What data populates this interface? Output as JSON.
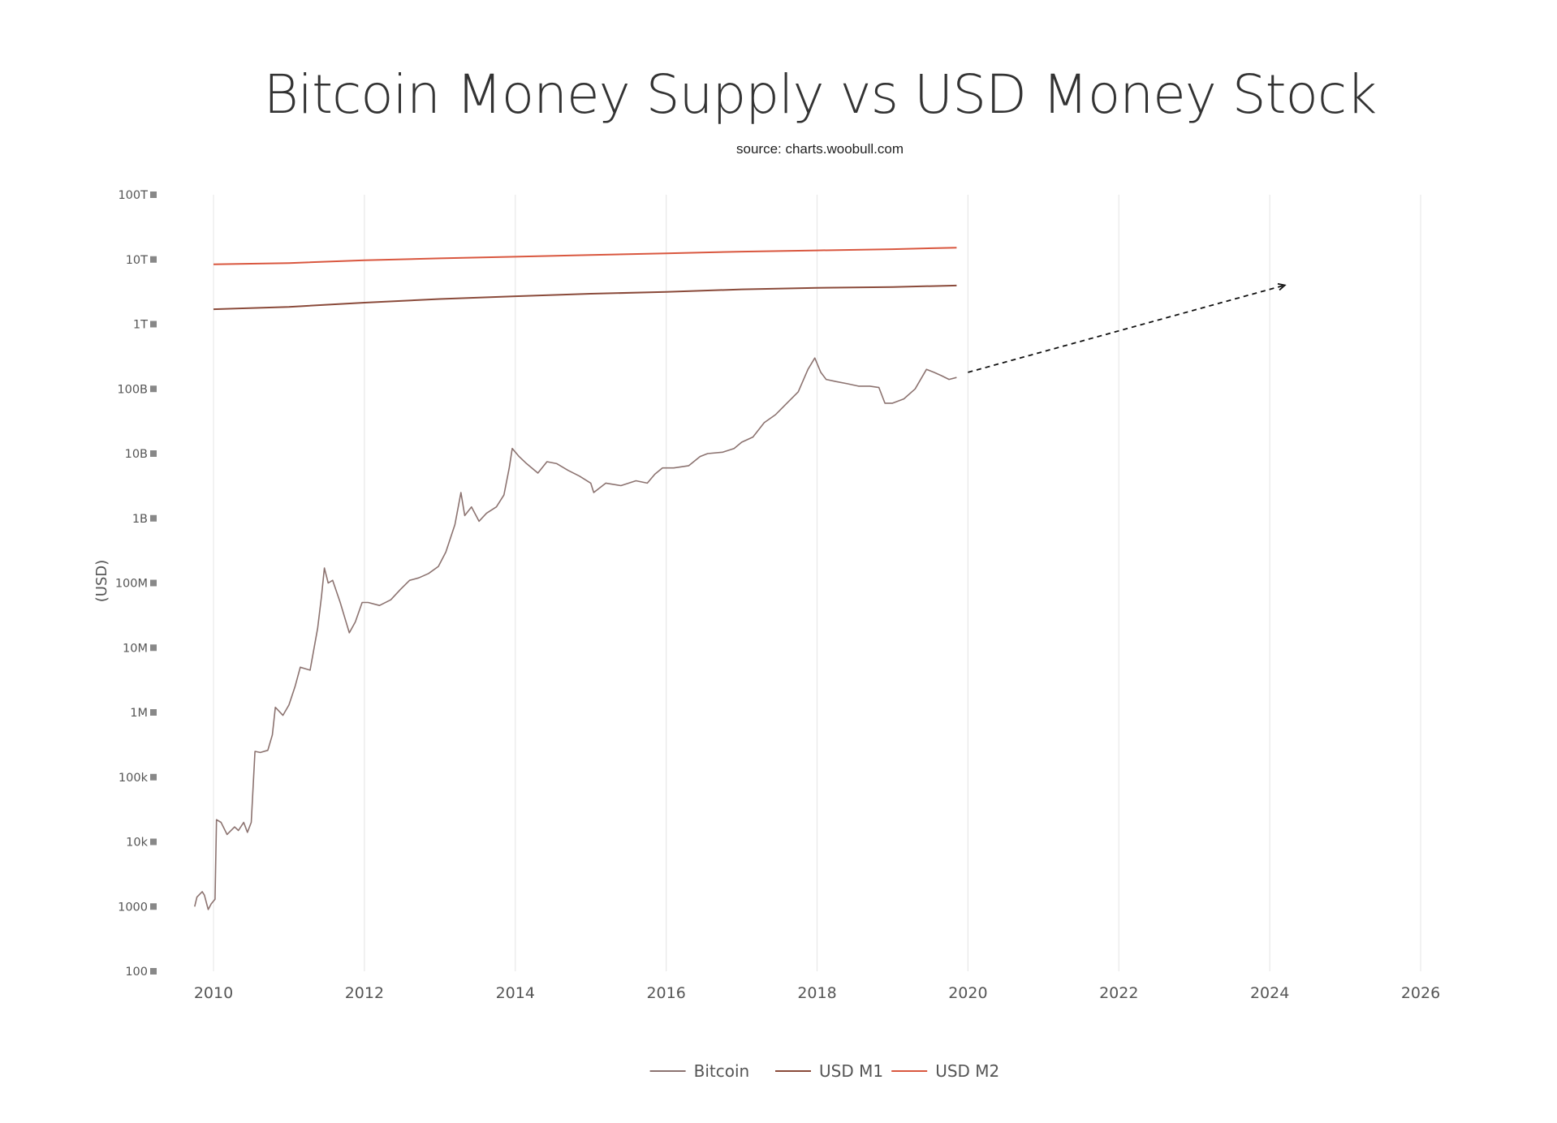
{
  "chart_data": {
    "type": "line",
    "title": "Bitcoin Money Supply vs USD Money Stock",
    "subtitle": "source: charts.woobull.com",
    "xlabel": "",
    "ylabel": "(USD)",
    "x_range": [
      2009.5,
      2027.0
    ],
    "y_scale": "log",
    "y_range": [
      100,
      100000000000000
    ],
    "x_ticks": [
      {
        "value": 2010,
        "label": "2010"
      },
      {
        "value": 2012,
        "label": "2012"
      },
      {
        "value": 2014,
        "label": "2014"
      },
      {
        "value": 2016,
        "label": "2016"
      },
      {
        "value": 2018,
        "label": "2018"
      },
      {
        "value": 2020,
        "label": "2020"
      },
      {
        "value": 2022,
        "label": "2022"
      },
      {
        "value": 2024,
        "label": "2024"
      },
      {
        "value": 2026,
        "label": "2026"
      }
    ],
    "y_ticks": [
      {
        "value": 100,
        "label": "100"
      },
      {
        "value": 1000,
        "label": "1000"
      },
      {
        "value": 10000,
        "label": "10k"
      },
      {
        "value": 100000,
        "label": "100k"
      },
      {
        "value": 1000000,
        "label": "1M"
      },
      {
        "value": 10000000,
        "label": "10M"
      },
      {
        "value": 100000000,
        "label": "100M"
      },
      {
        "value": 1000000000,
        "label": "1B"
      },
      {
        "value": 10000000000,
        "label": "10B"
      },
      {
        "value": 100000000000,
        "label": "100B"
      },
      {
        "value": 1000000000000,
        "label": "1T"
      },
      {
        "value": 10000000000000,
        "label": "10T"
      },
      {
        "value": 100000000000000,
        "label": "100T"
      }
    ],
    "grid": {
      "vertical": true,
      "horizontal": false
    },
    "legend": {
      "position": "bottom-center"
    },
    "series": [
      {
        "name": "Bitcoin",
        "color": "#8c7370",
        "points": [
          [
            2009.75,
            1000
          ],
          [
            2009.78,
            1400
          ],
          [
            2009.85,
            1700
          ],
          [
            2009.88,
            1500
          ],
          [
            2009.93,
            900
          ],
          [
            2009.97,
            1100
          ],
          [
            2010.02,
            1300
          ],
          [
            2010.04,
            22000
          ],
          [
            2010.1,
            20000
          ],
          [
            2010.18,
            13000
          ],
          [
            2010.28,
            17000
          ],
          [
            2010.33,
            15000
          ],
          [
            2010.4,
            20000
          ],
          [
            2010.45,
            14000
          ],
          [
            2010.5,
            20000
          ],
          [
            2010.55,
            250000
          ],
          [
            2010.62,
            240000
          ],
          [
            2010.72,
            260000
          ],
          [
            2010.78,
            450000
          ],
          [
            2010.82,
            1200000
          ],
          [
            2010.92,
            900000
          ],
          [
            2011.0,
            1300000
          ],
          [
            2011.08,
            2500000
          ],
          [
            2011.15,
            5000000
          ],
          [
            2011.28,
            4500000
          ],
          [
            2011.38,
            20000000
          ],
          [
            2011.43,
            60000000
          ],
          [
            2011.47,
            170000000
          ],
          [
            2011.52,
            100000000
          ],
          [
            2011.58,
            110000000
          ],
          [
            2011.68,
            50000000
          ],
          [
            2011.8,
            17000000
          ],
          [
            2011.88,
            25000000
          ],
          [
            2011.97,
            50000000
          ],
          [
            2012.05,
            50000000
          ],
          [
            2012.2,
            45000000
          ],
          [
            2012.35,
            55000000
          ],
          [
            2012.48,
            80000000
          ],
          [
            2012.6,
            110000000
          ],
          [
            2012.72,
            120000000
          ],
          [
            2012.85,
            140000000
          ],
          [
            2012.98,
            180000000
          ],
          [
            2013.08,
            300000000
          ],
          [
            2013.2,
            800000000
          ],
          [
            2013.28,
            2500000000
          ],
          [
            2013.33,
            1100000000
          ],
          [
            2013.42,
            1500000000
          ],
          [
            2013.52,
            900000000
          ],
          [
            2013.62,
            1200000000
          ],
          [
            2013.75,
            1500000000
          ],
          [
            2013.85,
            2300000000
          ],
          [
            2013.92,
            6000000000
          ],
          [
            2013.96,
            12000000000
          ],
          [
            2014.05,
            9000000000
          ],
          [
            2014.15,
            7000000000
          ],
          [
            2014.3,
            5000000000
          ],
          [
            2014.42,
            7500000000
          ],
          [
            2014.55,
            7000000000
          ],
          [
            2014.7,
            5500000000
          ],
          [
            2014.85,
            4500000000
          ],
          [
            2015.0,
            3500000000
          ],
          [
            2015.04,
            2500000000
          ],
          [
            2015.2,
            3500000000
          ],
          [
            2015.4,
            3200000000
          ],
          [
            2015.6,
            3800000000
          ],
          [
            2015.75,
            3500000000
          ],
          [
            2015.85,
            4800000000
          ],
          [
            2015.95,
            6000000000
          ],
          [
            2016.1,
            6000000000
          ],
          [
            2016.3,
            6500000000
          ],
          [
            2016.45,
            9000000000
          ],
          [
            2016.55,
            10000000000
          ],
          [
            2016.75,
            10500000000
          ],
          [
            2016.9,
            12000000000
          ],
          [
            2017.0,
            15000000000
          ],
          [
            2017.15,
            18000000000
          ],
          [
            2017.3,
            30000000000
          ],
          [
            2017.45,
            40000000000
          ],
          [
            2017.6,
            60000000000
          ],
          [
            2017.75,
            90000000000
          ],
          [
            2017.88,
            200000000000
          ],
          [
            2017.97,
            300000000000
          ],
          [
            2018.05,
            180000000000
          ],
          [
            2018.12,
            140000000000
          ],
          [
            2018.25,
            130000000000
          ],
          [
            2018.4,
            120000000000
          ],
          [
            2018.55,
            110000000000
          ],
          [
            2018.7,
            110000000000
          ],
          [
            2018.82,
            105000000000
          ],
          [
            2018.9,
            60000000000
          ],
          [
            2019.0,
            60000000000
          ],
          [
            2019.15,
            70000000000
          ],
          [
            2019.3,
            100000000000
          ],
          [
            2019.45,
            200000000000
          ],
          [
            2019.55,
            180000000000
          ],
          [
            2019.65,
            160000000000
          ],
          [
            2019.75,
            140000000000
          ],
          [
            2019.85,
            150000000000
          ]
        ]
      },
      {
        "name": "USD M1",
        "color": "#8a4a3a",
        "points": [
          [
            2010.0,
            1700000000000
          ],
          [
            2011.0,
            1850000000000
          ],
          [
            2012.0,
            2150000000000
          ],
          [
            2013.0,
            2450000000000
          ],
          [
            2014.0,
            2700000000000
          ],
          [
            2015.0,
            2950000000000
          ],
          [
            2016.0,
            3150000000000
          ],
          [
            2017.0,
            3450000000000
          ],
          [
            2018.0,
            3650000000000
          ],
          [
            2019.0,
            3750000000000
          ],
          [
            2019.85,
            3950000000000
          ]
        ]
      },
      {
        "name": "USD M2",
        "color": "#d9573f",
        "points": [
          [
            2010.0,
            8400000000000
          ],
          [
            2011.0,
            8800000000000
          ],
          [
            2012.0,
            9700000000000
          ],
          [
            2013.0,
            10400000000000
          ],
          [
            2014.0,
            11000000000000
          ],
          [
            2015.0,
            11700000000000
          ],
          [
            2016.0,
            12400000000000
          ],
          [
            2017.0,
            13200000000000
          ],
          [
            2018.0,
            13800000000000
          ],
          [
            2019.0,
            14400000000000
          ],
          [
            2019.85,
            15200000000000
          ]
        ]
      }
    ],
    "annotations": [
      {
        "type": "dashed-arrow",
        "color": "#111111",
        "from": [
          2020.0,
          180000000000
        ],
        "to": [
          2024.2,
          4000000000000
        ]
      }
    ]
  }
}
